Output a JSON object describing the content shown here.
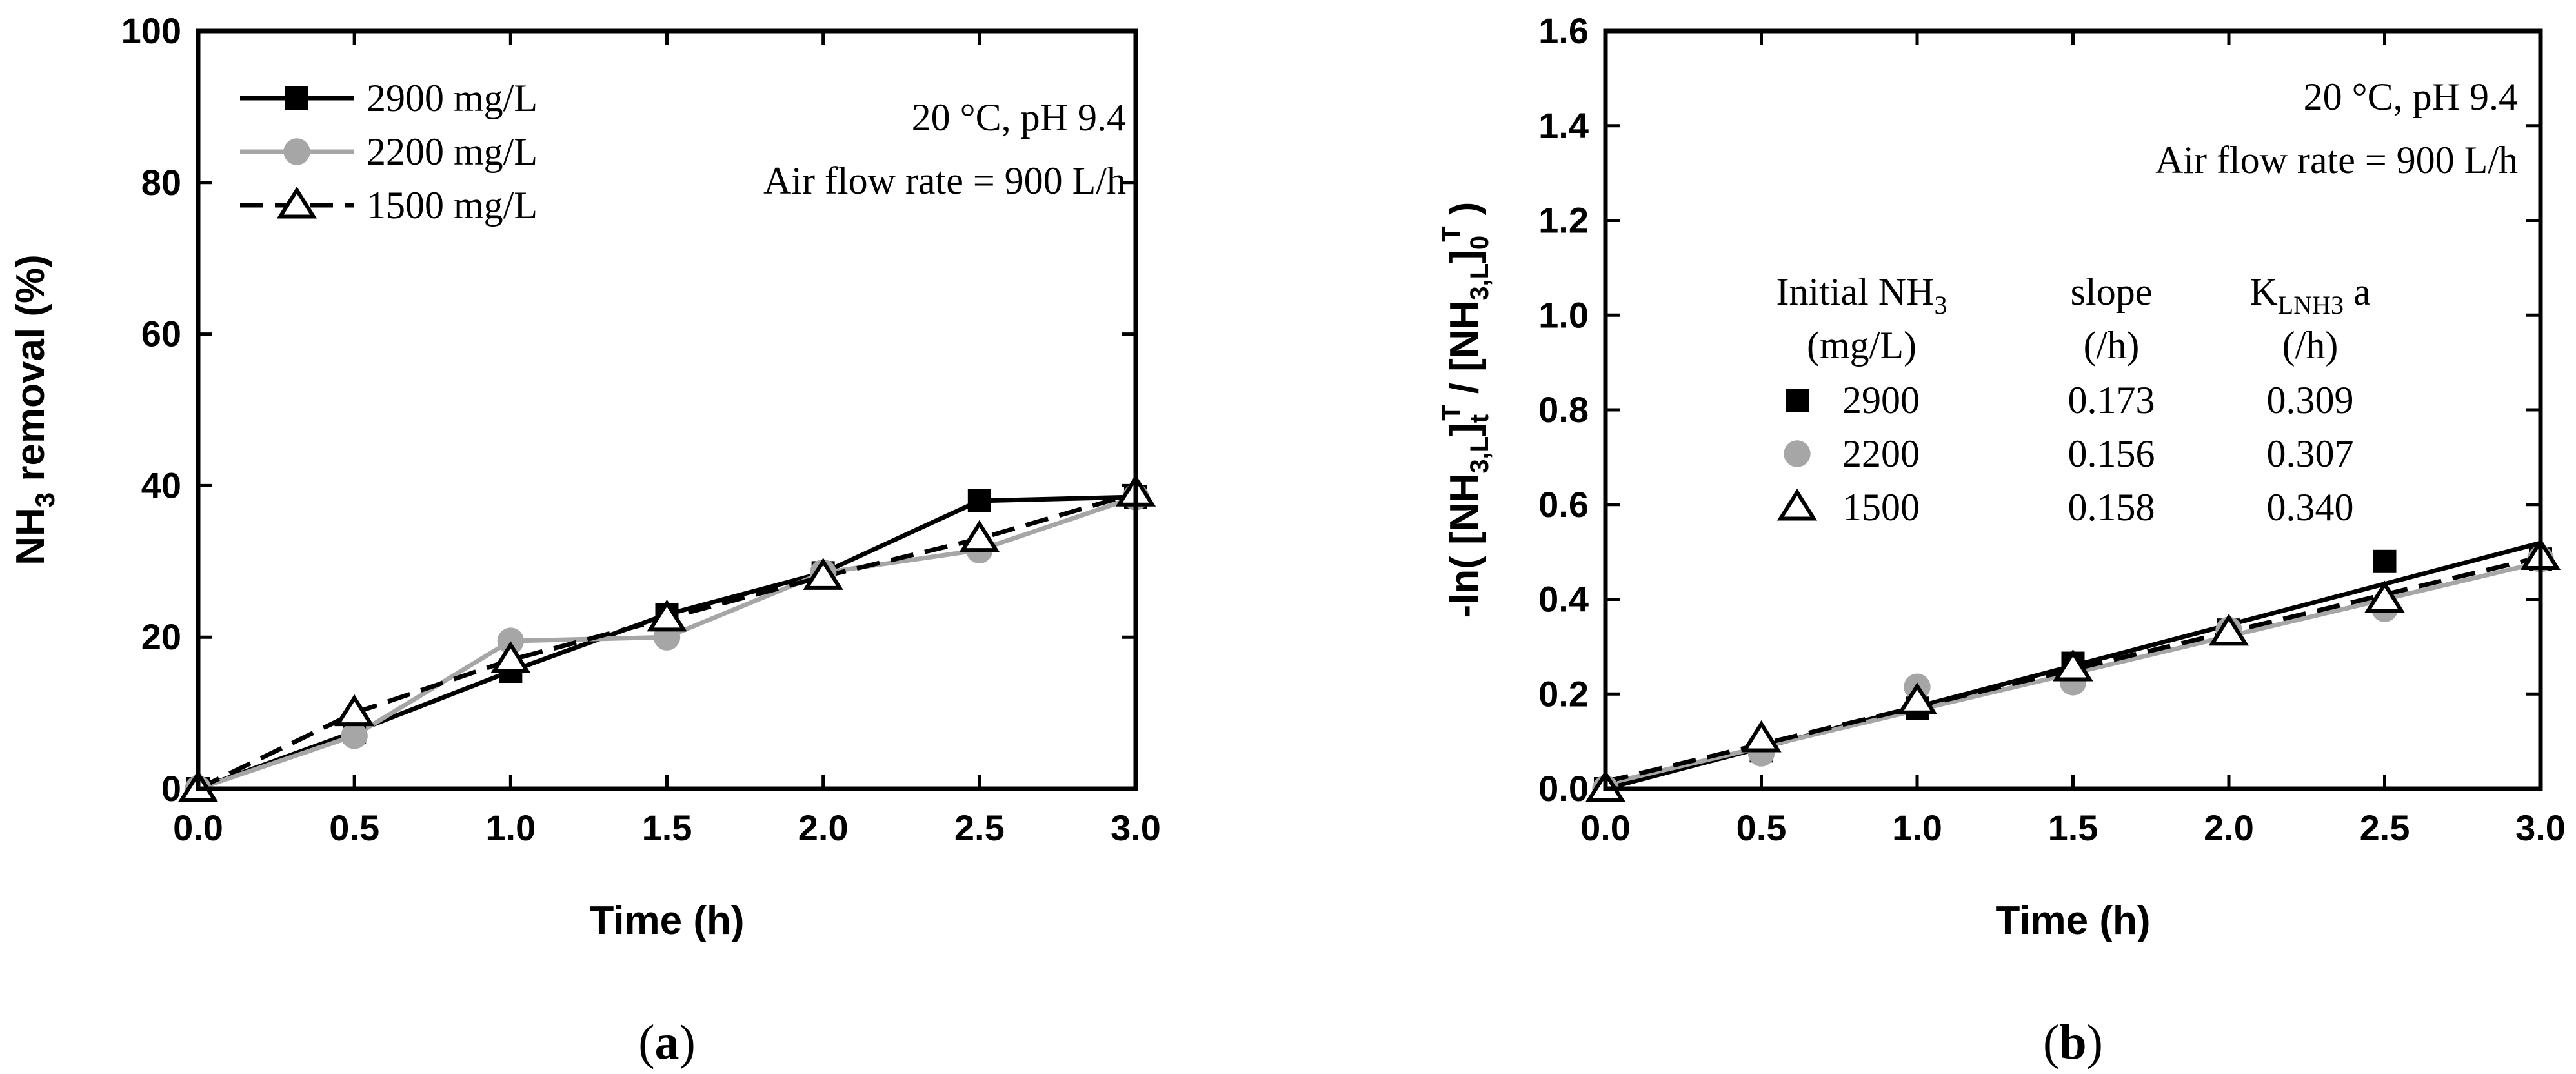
{
  "chart_data": [
    {
      "type": "line",
      "panel_label": "(a)",
      "panel_letter": "a",
      "title": "",
      "xlabel": "Time (h)",
      "ylabel_parts": {
        "pre": "NH",
        "sub": "3",
        "post": " removal (%)"
      },
      "xlim": [
        0,
        3
      ],
      "ylim": [
        0,
        100
      ],
      "xticks": [
        "0.0",
        "0.5",
        "1.0",
        "1.5",
        "2.0",
        "2.5",
        "3.0"
      ],
      "xtick_values": [
        0,
        0.5,
        1,
        1.5,
        2,
        2.5,
        3
      ],
      "yticks": [
        "0",
        "20",
        "40",
        "60",
        "80",
        "100"
      ],
      "ytick_values": [
        0,
        20,
        40,
        60,
        80,
        100
      ],
      "annotations": [
        "20 °C, pH 9.4",
        "Air flow rate = 900 L/h"
      ],
      "legend_position": "top-left",
      "series": [
        {
          "name": "2900 mg/L",
          "marker": "square",
          "color": "#000000",
          "dash": "solid",
          "x": [
            0,
            0.5,
            1,
            1.5,
            2,
            2.5,
            3
          ],
          "y": [
            0,
            7.5,
            15.5,
            23,
            28.5,
            38,
            38.5
          ]
        },
        {
          "name": "2200 mg/L",
          "marker": "circle",
          "color": "#a6a6a6",
          "dash": "solid",
          "x": [
            0,
            0.5,
            1,
            1.5,
            2,
            2.5,
            3
          ],
          "y": [
            0,
            7,
            19.5,
            20,
            28.5,
            31.5,
            38.5
          ]
        },
        {
          "name": "1500 mg/L",
          "marker": "triangle",
          "color": "#000000",
          "dash": "dashed",
          "x": [
            0,
            0.5,
            1,
            1.5,
            2,
            2.5,
            3
          ],
          "y": [
            0,
            10,
            17,
            22.5,
            28,
            33,
            39
          ]
        }
      ]
    },
    {
      "type": "scatter",
      "panel_label": "(b)",
      "panel_letter": "b",
      "title": "",
      "xlabel": "Time (h)",
      "ylabel_parts": [
        "-ln( [NH",
        "3,L",
        "]",
        "t",
        "T",
        " / [NH",
        "3,L",
        "]",
        "0",
        "T",
        " )"
      ],
      "xlim": [
        0,
        3
      ],
      "ylim": [
        0,
        1.6
      ],
      "xticks": [
        "0.0",
        "0.5",
        "1.0",
        "1.5",
        "2.0",
        "2.5",
        "3.0"
      ],
      "xtick_values": [
        0,
        0.5,
        1,
        1.5,
        2,
        2.5,
        3
      ],
      "yticks": [
        "0.0",
        "0.2",
        "0.4",
        "0.6",
        "0.8",
        "1.0",
        "1.2",
        "1.4",
        "1.6"
      ],
      "ytick_values": [
        0,
        0.2,
        0.4,
        0.6,
        0.8,
        1.0,
        1.2,
        1.4,
        1.6
      ],
      "annotations": [
        "20 °C, pH 9.4",
        "Air flow rate = 900 L/h"
      ],
      "table": {
        "headers": {
          "col1_line1_pre": "Initial NH",
          "col1_line1_sub": "3",
          "col1_line2": "(mg/L)",
          "col2_line1": "slope",
          "col2_line2": "(/h)",
          "col3_line1_pre": "K",
          "col3_line1_sub": "LNH3",
          "col3_line1_post": " a",
          "col3_line2": "(/h)"
        },
        "rows": [
          {
            "marker": "square",
            "initial": "2900",
            "slope": "0.173",
            "kla": "0.309"
          },
          {
            "marker": "circle",
            "initial": "2200",
            "slope": "0.156",
            "kla": "0.307"
          },
          {
            "marker": "triangle",
            "initial": "1500",
            "slope": "0.158",
            "kla": "0.340"
          }
        ]
      },
      "series": [
        {
          "name": "2900",
          "marker": "square",
          "color": "#000000",
          "dash": "solid",
          "x": [
            0,
            0.5,
            1,
            1.5,
            2,
            2.5,
            3
          ],
          "y": [
            0,
            0.08,
            0.17,
            0.265,
            0.335,
            0.48,
            0.485
          ],
          "fit": {
            "slope": 0.173,
            "intercept": 0.0
          }
        },
        {
          "name": "2200",
          "marker": "circle",
          "color": "#a6a6a6",
          "dash": "solid",
          "x": [
            0,
            0.5,
            1,
            1.5,
            2,
            2.5,
            3
          ],
          "y": [
            0,
            0.075,
            0.215,
            0.225,
            0.335,
            0.38,
            0.485
          ],
          "fit": {
            "slope": 0.156,
            "intercept": 0.01
          }
        },
        {
          "name": "1500",
          "marker": "triangle",
          "color": "#000000",
          "dash": "dashed",
          "x": [
            0,
            0.5,
            1,
            1.5,
            2,
            2.5,
            3
          ],
          "y": [
            0,
            0.105,
            0.185,
            0.255,
            0.33,
            0.4,
            0.49
          ],
          "fit": {
            "slope": 0.158,
            "intercept": 0.015
          }
        }
      ]
    }
  ]
}
